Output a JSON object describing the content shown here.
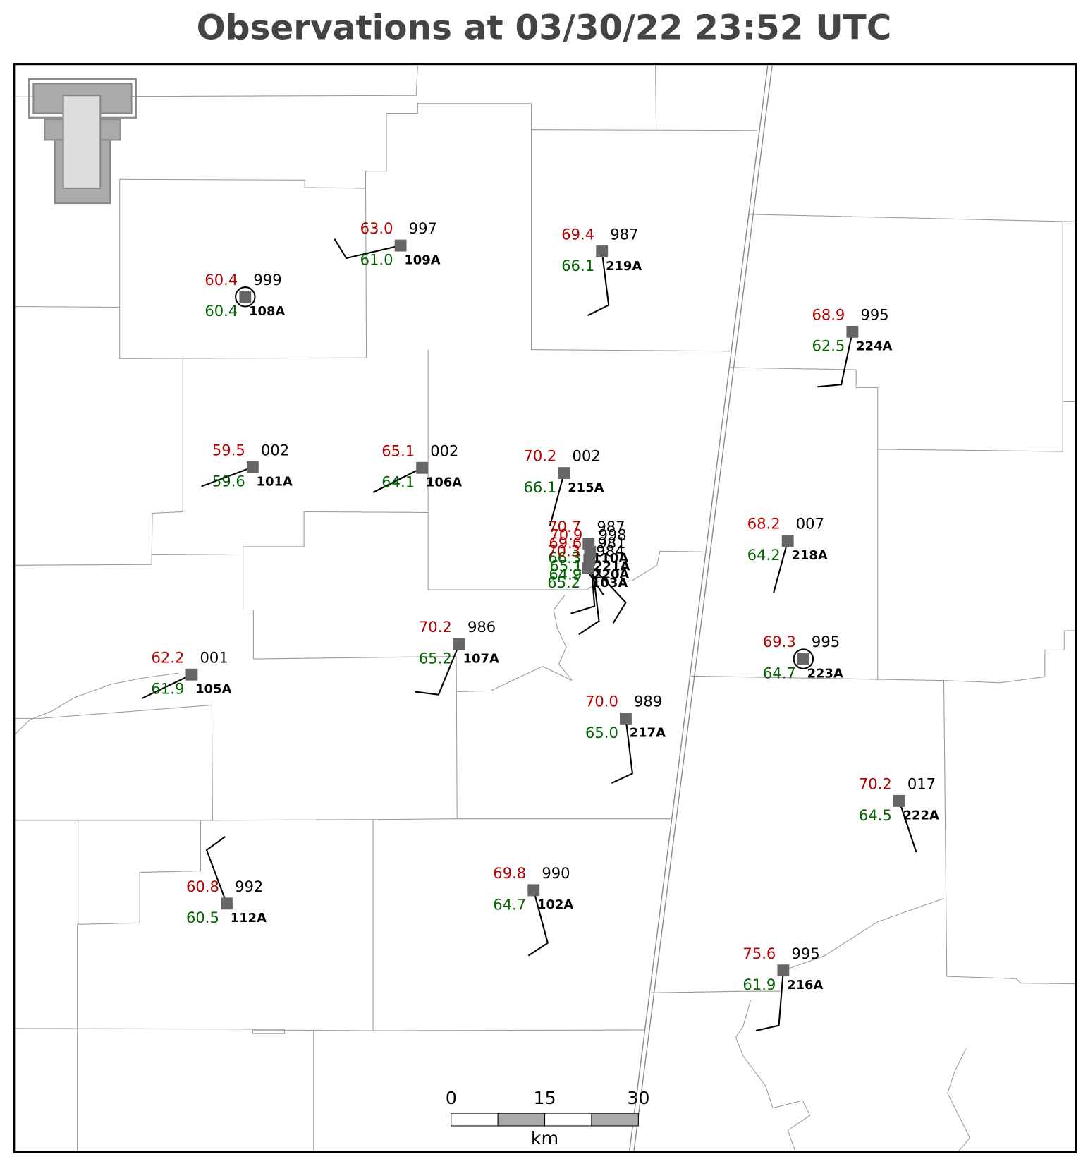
{
  "title": "Observations at 03/30/22 23:52 UTC",
  "stations": [
    {
      "id": "109A",
      "temp": "63.0",
      "dew": "61.0",
      "pres": "997"
    },
    {
      "id": "108A",
      "temp": "60.4",
      "dew": "60.4",
      "pres": "999"
    },
    {
      "id": "219A",
      "temp": "69.4",
      "dew": "66.1",
      "pres": "987"
    },
    {
      "id": "224A",
      "temp": "68.9",
      "dew": "62.5",
      "pres": "995"
    },
    {
      "id": "101A",
      "temp": "59.5",
      "dew": "59.6",
      "pres": "002"
    },
    {
      "id": "106A",
      "temp": "65.1",
      "dew": "64.1",
      "pres": "002"
    },
    {
      "id": "215A",
      "temp": "70.2",
      "dew": "66.1",
      "pres": "002"
    },
    {
      "id": "218A",
      "temp": "68.2",
      "dew": "64.2",
      "pres": "007"
    },
    {
      "id": "223A",
      "temp": "69.3",
      "dew": "64.7",
      "pres": "995"
    },
    {
      "id": "107A",
      "temp": "70.2",
      "dew": "65.2",
      "pres": "986"
    },
    {
      "id": "105A",
      "temp": "62.2",
      "dew": "61.9",
      "pres": "001"
    },
    {
      "id": "217A",
      "temp": "70.0",
      "dew": "65.0",
      "pres": "989"
    },
    {
      "id": "222A",
      "temp": "70.2",
      "dew": "64.5",
      "pres": "017"
    },
    {
      "id": "112A",
      "temp": "60.8",
      "dew": "60.5",
      "pres": "992"
    },
    {
      "id": "102A",
      "temp": "69.8",
      "dew": "64.7",
      "pres": "990"
    },
    {
      "id": "216A",
      "temp": "75.6",
      "dew": "61.9",
      "pres": "995"
    },
    {
      "id": "110A",
      "temp": "70.7",
      "dew": "66.3",
      "pres": "987"
    },
    {
      "id": "221A",
      "temp": "70.9",
      "dew": "65.1",
      "pres": "998"
    },
    {
      "id": "220A",
      "temp": "69.6",
      "dew": "64.9",
      "pres": "981"
    },
    {
      "id": "103A",
      "temp": "70.3",
      "dew": "65.2",
      "pres": "984"
    }
  ],
  "scale_bar": {
    "labels": [
      "0",
      "15",
      "30"
    ],
    "unit": "km"
  }
}
